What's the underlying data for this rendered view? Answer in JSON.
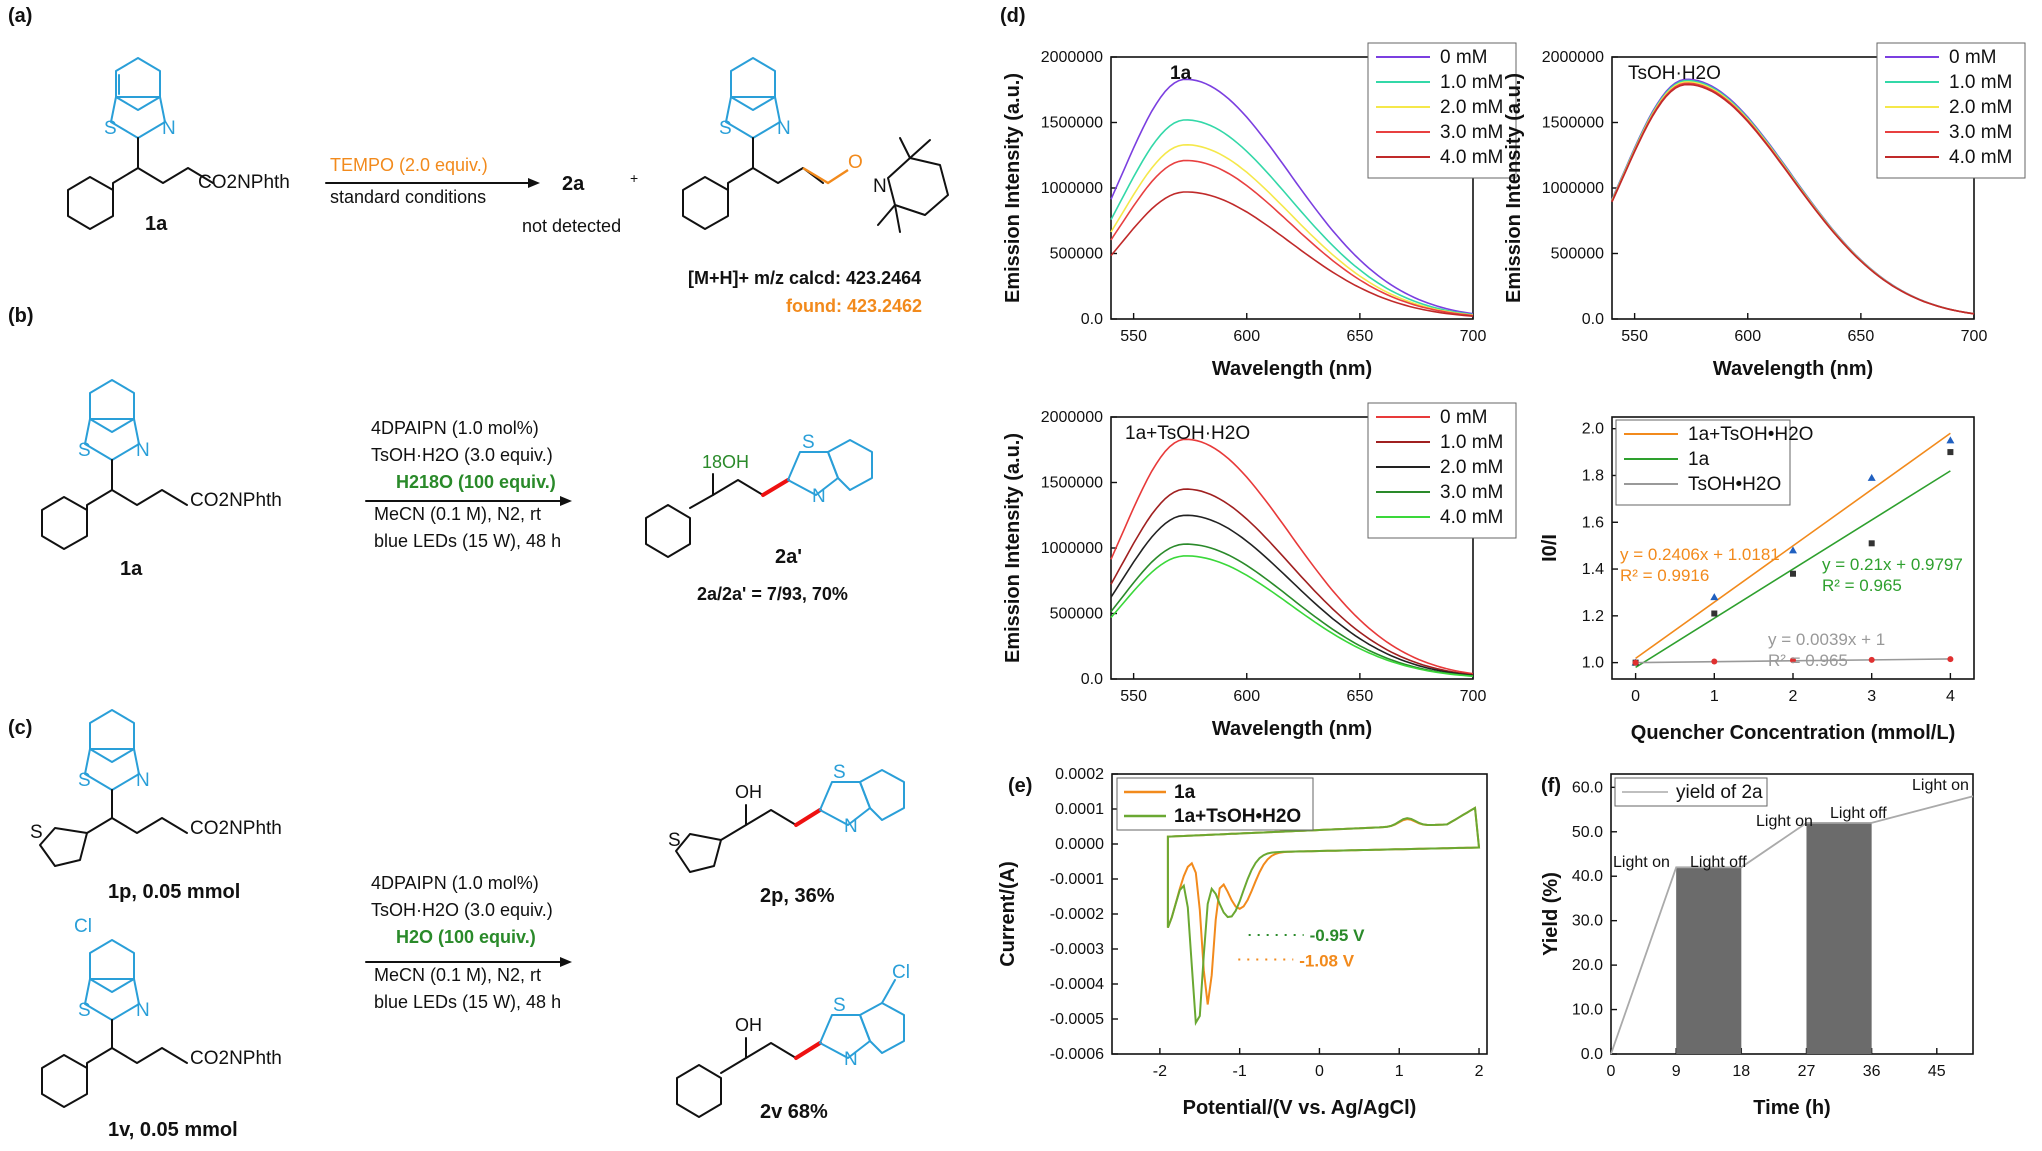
{
  "panels": {
    "a": "(a)",
    "b": "(b)",
    "c": "(c)",
    "d": "(d)",
    "e": "(e)",
    "f": "(f)"
  },
  "scheme_a": {
    "sub_label": "1a",
    "substituent": "CO2NPhth",
    "reagent": "TEMPO (2.0 equiv.)",
    "conditions": "standard conditions",
    "product": "2a",
    "plus": "+",
    "product_note": "not detected",
    "ms_line": "[M+H]+ m/z calcd: 423.2464",
    "found": "found: 423.2462",
    "adduct_O": "O",
    "adduct_N": "N"
  },
  "scheme_b": {
    "sub_label": "1a",
    "substituent": "CO2NPhth",
    "conditions": [
      "4DPAIPN (1.0 mol%)",
      "TsOH·H2O (3.0 equiv.)",
      "H218O (100 equiv.)",
      "MeCN (0.1 M), N2, rt",
      "blue LEDs (15 W), 48 h"
    ],
    "product_label": "2a'",
    "ratio": "2a/2a' = 7/93, 70%",
    "oh": "18OH"
  },
  "scheme_c": {
    "sub1_label": "1p, 0.05 mmol",
    "sub2_label": "1v, 0.05 mmol",
    "substituent": "CO2NPhth",
    "conditions": [
      "4DPAIPN (1.0 mol%)",
      "TsOH·H2O (3.0 equiv.)",
      "H2O (100 equiv.)",
      "MeCN (0.1 M), N2, rt",
      "blue LEDs (15 W), 48 h"
    ],
    "prod1_label": "2p, 36%",
    "prod2_label": "2v 68%",
    "oh": "OH",
    "cl": "Cl"
  },
  "chart_data": [
    {
      "type": "line",
      "panel": "d",
      "inset_title": "1a",
      "xlabel": "Wavelength (nm)",
      "ylabel": "Emission Intensity (a.u.)",
      "xlim": [
        540,
        700
      ],
      "ylim": [
        0,
        2000000
      ],
      "xticks": [
        550,
        600,
        650,
        700
      ],
      "yticks": [
        0,
        500000,
        1000000,
        1500000,
        2000000
      ],
      "legend_pos": "top-right",
      "series": [
        {
          "name": "0 mM",
          "peak": 1830000,
          "color": "#7b3fe0"
        },
        {
          "name": "1.0 mM",
          "peak": 1520000,
          "color": "#33d8a8"
        },
        {
          "name": "2.0 mM",
          "peak": 1330000,
          "color": "#f5e84a"
        },
        {
          "name": "3.0 mM",
          "peak": 1210000,
          "color": "#e84040"
        },
        {
          "name": "4.0 mM",
          "peak": 970000,
          "color": "#c02a2a"
        }
      ]
    },
    {
      "type": "line",
      "panel": "d",
      "inset_title": "TsOH·H2O",
      "xlabel": "Wavelength (nm)",
      "ylabel": "Emission Intensity (a.u.)",
      "xlim": [
        540,
        700
      ],
      "ylim": [
        0,
        2000000
      ],
      "xticks": [
        550,
        600,
        650,
        700
      ],
      "yticks": [
        0,
        500000,
        1000000,
        1500000,
        2000000
      ],
      "legend_pos": "top-right",
      "series": [
        {
          "name": "0 mM",
          "peak": 1830000,
          "color": "#7b3fe0"
        },
        {
          "name": "1.0 mM",
          "peak": 1820000,
          "color": "#33d8a8"
        },
        {
          "name": "2.0 mM",
          "peak": 1810000,
          "color": "#f5e84a"
        },
        {
          "name": "3.0 mM",
          "peak": 1800000,
          "color": "#e84040"
        },
        {
          "name": "4.0 mM",
          "peak": 1790000,
          "color": "#c02a2a"
        }
      ]
    },
    {
      "type": "line",
      "panel": "d",
      "inset_title": "1a+TsOH·H2O",
      "xlabel": "Wavelength (nm)",
      "ylabel": "Emission Intensity (a.u.)",
      "xlim": [
        540,
        700
      ],
      "ylim": [
        0,
        2000000
      ],
      "xticks": [
        550,
        600,
        650,
        700
      ],
      "yticks": [
        0,
        500000,
        1000000,
        1500000,
        2000000
      ],
      "legend_pos": "top-right",
      "series": [
        {
          "name": "0 mM",
          "peak": 1830000,
          "color": "#e83a3a"
        },
        {
          "name": "1.0 mM",
          "peak": 1450000,
          "color": "#a02020"
        },
        {
          "name": "2.0 mM",
          "peak": 1250000,
          "color": "#222222"
        },
        {
          "name": "3.0 mM",
          "peak": 1030000,
          "color": "#2a8a2a"
        },
        {
          "name": "4.0 mM",
          "peak": 940000,
          "color": "#3ad83a"
        }
      ]
    },
    {
      "type": "scatter",
      "panel": "d",
      "xlabel": "Quencher Concentration (mmol/L)",
      "ylabel": "I0/I",
      "xlim": [
        -0.3,
        4.3
      ],
      "ylim": [
        0.93,
        2.05
      ],
      "xticks": [
        0,
        1,
        2,
        3,
        4
      ],
      "yticks": [
        1.0,
        1.2,
        1.4,
        1.6,
        1.8,
        2.0
      ],
      "legend_pos": "top-left",
      "series": [
        {
          "name": "1a+TsOH•H2O",
          "x": [
            0,
            1,
            2,
            3,
            4
          ],
          "y": [
            1.0,
            1.28,
            1.48,
            1.79,
            1.95
          ],
          "fit": {
            "slope": 0.2406,
            "intercept": 1.0181
          },
          "eq": "y = 0.2406x + 1.0181",
          "r2": "R² = 0.9916",
          "color": "#f28a1c",
          "marker": "#2060c0"
        },
        {
          "name": "1a",
          "x": [
            0,
            1,
            2,
            3,
            4
          ],
          "y": [
            1.0,
            1.21,
            1.38,
            1.51,
            1.9
          ],
          "fit": {
            "slope": 0.21,
            "intercept": 0.9797
          },
          "eq": "y = 0.21x + 0.9797",
          "r2": "R² = 0.965",
          "color": "#2ea02e",
          "marker": "#333333"
        },
        {
          "name": "TsOH•H2O",
          "x": [
            0,
            1,
            2,
            3,
            4
          ],
          "y": [
            1.0,
            1.005,
            1.01,
            1.012,
            1.015
          ],
          "fit": {
            "slope": 0.0039,
            "intercept": 1
          },
          "eq": "y = 0.0039x + 1",
          "r2": "R² = 0.965",
          "color": "#999999",
          "marker": "#e03030"
        }
      ]
    },
    {
      "type": "line",
      "panel": "e",
      "xlabel": "Potential/(V vs. Ag/AgCl)",
      "ylabel": "Current/(A)",
      "xlim": [
        -2.6,
        2.1
      ],
      "ylim": [
        -0.0006,
        0.0002
      ],
      "xticks": [
        -2,
        -1,
        0,
        1,
        2
      ],
      "yticks": [
        -0.0006,
        -0.0005,
        -0.0004,
        -0.0003,
        -0.0002,
        -0.0001,
        0.0,
        0.0001,
        0.0002
      ],
      "yticklabels": [
        "-0.0006",
        "-0.0005",
        "-0.0004",
        "-0.0003",
        "-0.0002",
        "-0.0001",
        "0.0000",
        "0.0001",
        "0.0002"
      ],
      "legend_pos": "top-left",
      "series": [
        {
          "name": "1a",
          "color": "#f28a1c"
        },
        {
          "name": "1a+TsOH•H2O",
          "color": "#6aa832"
        }
      ],
      "annotations": [
        {
          "text": "-0.95 V",
          "color": "#2a8a2a"
        },
        {
          "text": "-1.08 V",
          "color": "#f28a1c"
        }
      ]
    },
    {
      "type": "area",
      "panel": "f",
      "xlabel": "Time (h)",
      "ylabel": "Yield (%)",
      "xlim": [
        0,
        50
      ],
      "ylim": [
        0,
        63
      ],
      "xticks": [
        0,
        9,
        18,
        27,
        36,
        45
      ],
      "yticks": [
        0,
        10,
        20,
        30,
        40,
        50,
        60
      ],
      "legend_pos": "top-left",
      "series": [
        {
          "name": "yield of 2a",
          "x": [
            0,
            9,
            18,
            27,
            36,
            50
          ],
          "y": [
            0,
            42,
            42,
            52,
            52,
            58
          ],
          "color": "#aaaaaa"
        }
      ],
      "bars": [
        {
          "x0": 9,
          "x1": 18,
          "y": 42
        },
        {
          "x0": 27,
          "x1": 36,
          "y": 52
        }
      ],
      "annotations": [
        "Light on",
        "Light off",
        "Light on",
        "Light off",
        "Light on"
      ]
    }
  ]
}
